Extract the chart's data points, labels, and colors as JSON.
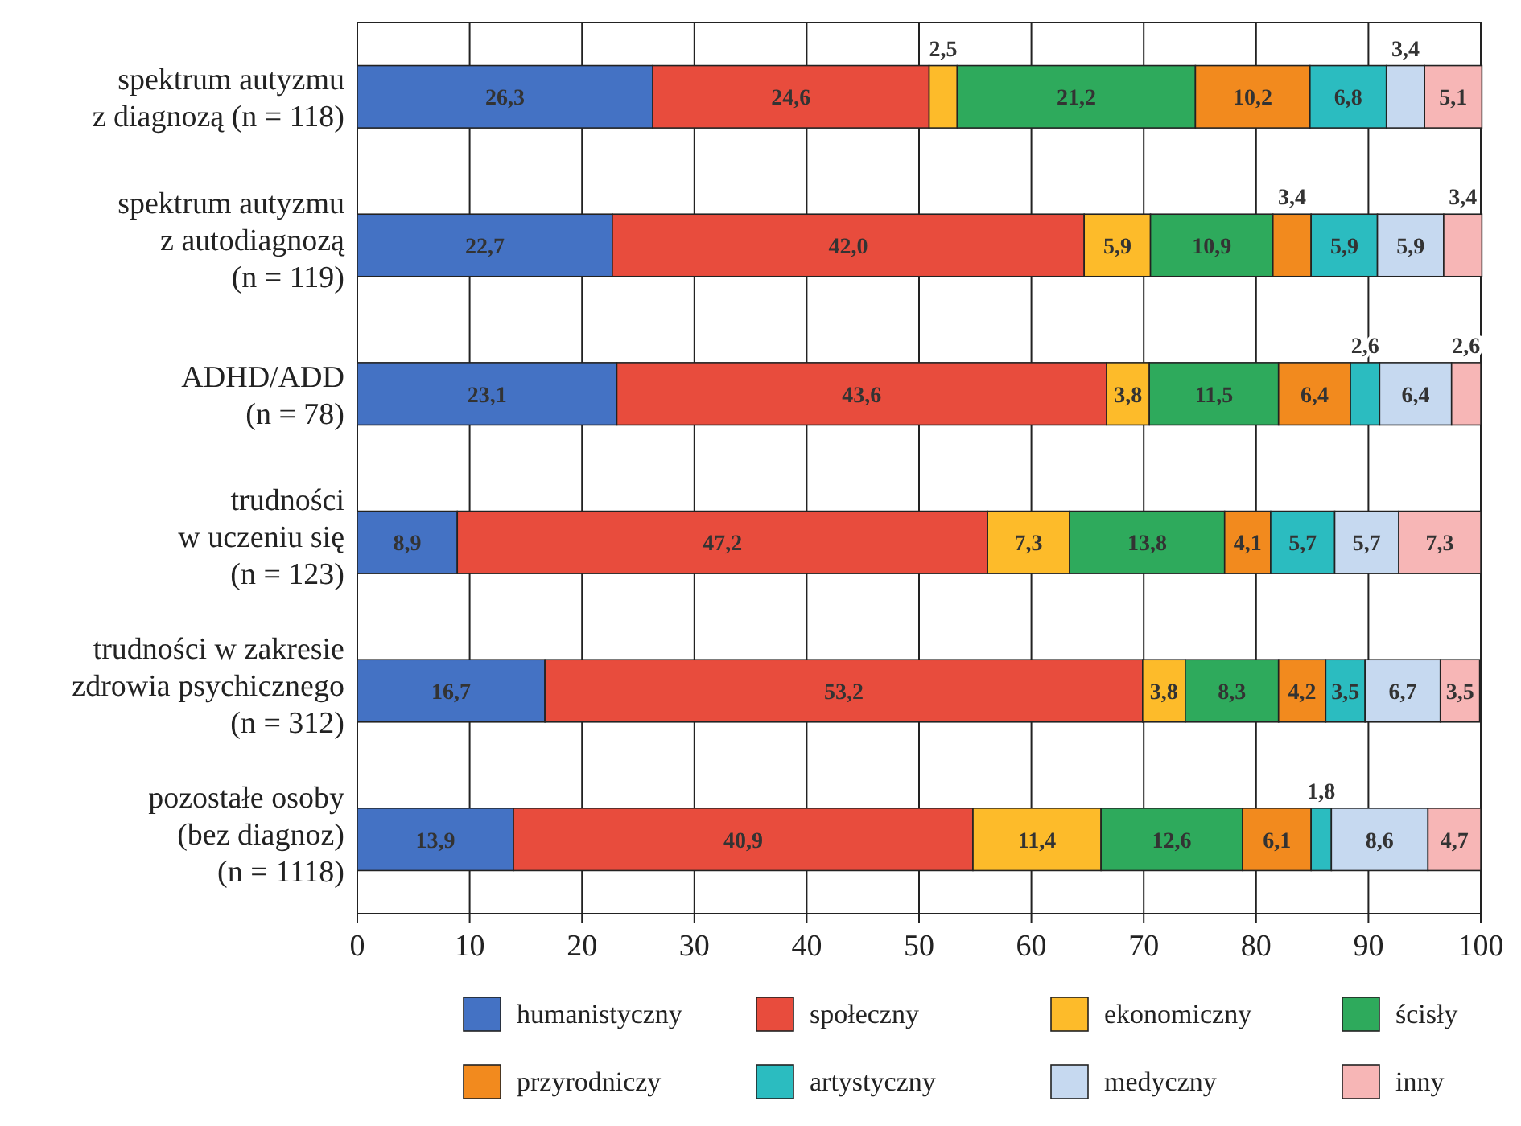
{
  "chart_data": {
    "type": "bar",
    "orientation": "horizontal",
    "stacked": true,
    "categories": [
      "spektrum autyzmu\nz diagnozą (n = 118)",
      "spektrum autyzmu\nz autodiagnozą\n(n = 119)",
      "ADHD/ADD\n(n = 78)",
      "trudności\nw uczeniu się\n(n = 123)",
      "trudności w zakresie\nzdrowia psychicznego\n(n = 312)",
      "pozostałe osoby\n(bez diagnoz)\n(n = 1118)"
    ],
    "series": [
      {
        "name": "humanistyczny",
        "color": "#4472c4",
        "values": [
          26.3,
          22.7,
          23.1,
          8.9,
          16.7,
          13.9
        ],
        "value_labels": [
          "26,3",
          "22,7",
          "23,1",
          "8,9",
          "16,7",
          "13,9"
        ]
      },
      {
        "name": "społeczny",
        "color": "#e84c3d",
        "values": [
          24.6,
          42.0,
          43.6,
          47.2,
          53.2,
          40.9
        ],
        "value_labels": [
          "24,6",
          "42,0",
          "43,6",
          "47,2",
          "53,2",
          "40,9"
        ]
      },
      {
        "name": "ekonomiczny",
        "color": "#fdbb2a",
        "values": [
          2.5,
          5.9,
          3.8,
          7.3,
          3.8,
          11.4
        ],
        "value_labels": [
          "2,5",
          "5,9",
          "3,8",
          "7,3",
          "3,8",
          "11,4"
        ]
      },
      {
        "name": "ścisły",
        "color": "#2eaa5c",
        "values": [
          21.2,
          10.9,
          11.5,
          13.8,
          8.3,
          12.6
        ],
        "value_labels": [
          "21,2",
          "10,9",
          "11,5",
          "13,8",
          "8,3",
          "12,6"
        ]
      },
      {
        "name": "przyrodniczy",
        "color": "#f28a1e",
        "values": [
          10.2,
          3.4,
          6.4,
          4.1,
          4.2,
          6.1
        ],
        "value_labels": [
          "10,2",
          "3,4",
          "6,4",
          "4,1",
          "4,2",
          "6,1"
        ]
      },
      {
        "name": "artystyczny",
        "color": "#2bbcc0",
        "values": [
          6.8,
          5.9,
          2.6,
          5.7,
          3.5,
          1.8
        ],
        "value_labels": [
          "6,8",
          "5,9",
          "2,6",
          "5,7",
          "3,5",
          "1,8"
        ]
      },
      {
        "name": "medyczny",
        "color": "#c6d9f0",
        "values": [
          3.4,
          5.9,
          6.4,
          5.7,
          6.7,
          8.6
        ],
        "value_labels": [
          "3,4",
          "5,9",
          "6,4",
          "5,7",
          "6,7",
          "8,6"
        ]
      },
      {
        "name": "inny",
        "color": "#f7b6b6",
        "values": [
          5.1,
          3.4,
          2.6,
          7.3,
          3.5,
          4.7
        ],
        "value_labels": [
          "5,1",
          "3,4",
          "2,6",
          "7,3",
          "3,5",
          "4,7"
        ]
      }
    ],
    "xlim": [
      0,
      100
    ],
    "xticks": [
      0,
      10,
      20,
      30,
      40,
      50,
      60,
      70,
      80,
      90,
      100
    ],
    "grid": "x",
    "legend": "bottom"
  }
}
